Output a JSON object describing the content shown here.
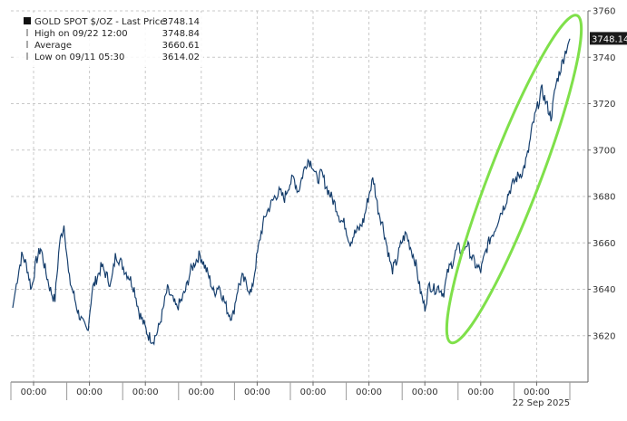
{
  "chart_data": {
    "type": "line",
    "title": "",
    "xlabel": "",
    "ylabel": "",
    "ylim": [
      3600,
      3760
    ],
    "y_ticks": [
      3620,
      3640,
      3660,
      3680,
      3700,
      3720,
      3740,
      3760
    ],
    "x_ticks": [
      "00:00",
      "00:00",
      "00:00",
      "00:00",
      "00:00",
      "00:00",
      "00:00",
      "00:00",
      "00:00",
      "00:00"
    ],
    "x_date_label": "22 Sep 2025",
    "grid": true,
    "legend_position": "top-left",
    "legend": [
      {
        "label": "GOLD SPOT $/OZ - Last Price",
        "value": "3748.14"
      },
      {
        "label": "High on 09/22 12:00",
        "value": "3748.84"
      },
      {
        "label": "Average",
        "value": "3660.61"
      },
      {
        "label": "Low on 09/11 05:30",
        "value": "3614.02"
      }
    ],
    "last_price_label": "3748.14",
    "series": [
      {
        "values": [
          3632,
          3645,
          3655,
          3650,
          3640,
          3652,
          3658,
          3648,
          3640,
          3635,
          3660,
          3668,
          3645,
          3638,
          3630,
          3625,
          3622,
          3640,
          3645,
          3650,
          3646,
          3642,
          3655,
          3652,
          3648,
          3645,
          3640,
          3630,
          3625,
          3620,
          3618,
          3622,
          3630,
          3640,
          3636,
          3632,
          3635,
          3640,
          3648,
          3652,
          3655,
          3650,
          3645,
          3638,
          3642,
          3636,
          3630,
          3628,
          3640,
          3645,
          3642,
          3638,
          3652,
          3664,
          3672,
          3676,
          3680,
          3682,
          3679,
          3685,
          3688,
          3682,
          3690,
          3696,
          3694,
          3687,
          3690,
          3684,
          3680,
          3676,
          3670,
          3668,
          3660,
          3664,
          3666,
          3670,
          3680,
          3688,
          3675,
          3668,
          3658,
          3648,
          3652,
          3660,
          3664,
          3658,
          3652,
          3640,
          3632,
          3642,
          3640,
          3641,
          3638,
          3648,
          3652,
          3658,
          3656,
          3660,
          3654,
          3650,
          3648,
          3656,
          3662,
          3666,
          3672,
          3676,
          3682,
          3686,
          3689,
          3691,
          3698,
          3710,
          3718,
          3726,
          3720,
          3714,
          3728,
          3735,
          3742,
          3748
        ]
      }
    ]
  }
}
